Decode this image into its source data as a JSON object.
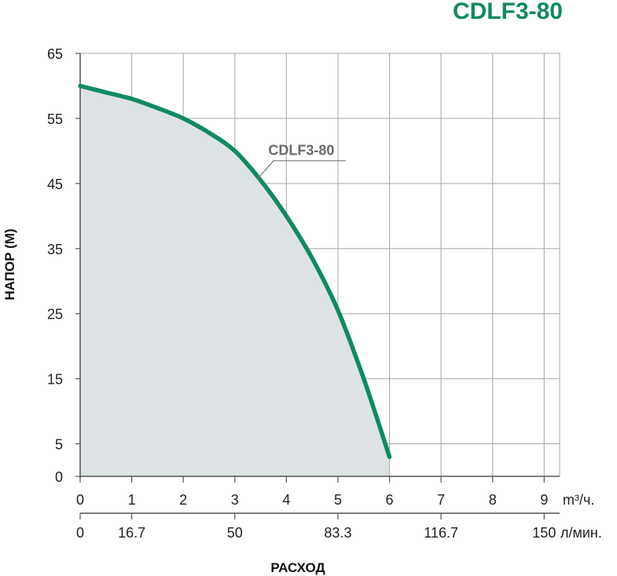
{
  "chart_data": {
    "type": "area",
    "title": "CDLF3-80",
    "ylabel": "НАПОР (М)",
    "xlabel": "РАСХОД",
    "x_unit_primary": "m³/ч.",
    "x_unit_secondary": "л/мин.",
    "xlim": [
      0,
      9.3
    ],
    "ylim": [
      0,
      65
    ],
    "x_ticks": [
      0,
      1,
      2,
      3,
      4,
      5,
      6,
      7,
      8,
      9
    ],
    "x_tick_labels": [
      "0",
      "1",
      "2",
      "3",
      "4",
      "5",
      "6",
      "7",
      "8",
      "9"
    ],
    "x2_ticks": [
      0,
      1,
      3,
      5,
      7,
      9
    ],
    "x2_tick_labels": [
      "0",
      "16.7",
      "50",
      "83.3",
      "116.7",
      "150"
    ],
    "y_ticks": [
      0,
      5,
      15,
      25,
      35,
      45,
      55,
      65
    ],
    "y_tick_labels": [
      "0",
      "5",
      "15",
      "25",
      "35",
      "45",
      "55",
      "65"
    ],
    "grid": true,
    "series": [
      {
        "name": "CDLF3-80",
        "color": "#0f8a63",
        "fill": "#dde3e5",
        "x": [
          0,
          0.5,
          1,
          1.5,
          2,
          2.5,
          3,
          3.5,
          4,
          4.5,
          5,
          5.5,
          6
        ],
        "y": [
          60,
          59,
          58,
          56.6,
          55,
          52.8,
          50,
          45.5,
          40,
          33.5,
          25.5,
          15,
          3
        ]
      }
    ]
  },
  "colors": {
    "accent": "#0f8a63",
    "grid": "#a6a6a6",
    "axis": "#555555",
    "fill": "#dde3e5"
  }
}
